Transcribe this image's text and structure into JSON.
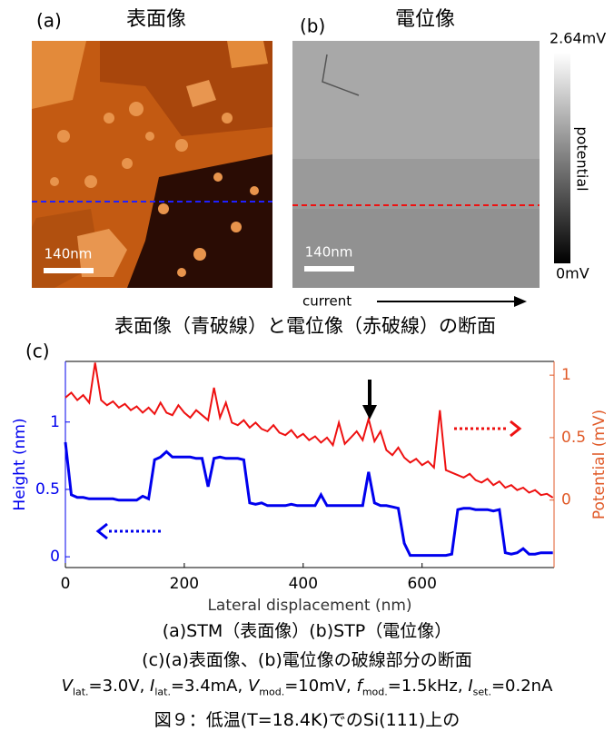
{
  "panel_a": {
    "label": "(a)",
    "title": "表面像",
    "scale_bar": "140nm"
  },
  "panel_b": {
    "label": "(b)",
    "title": "電位像",
    "scale_bar": "140nm",
    "colorbar_max": "2.64mV",
    "colorbar_min": "0mV",
    "colorbar_label": "potential",
    "current_label": "current"
  },
  "chart_data": {
    "type": "line",
    "title": "表面像（青破線）と電位像（赤破線）の断面",
    "panel_label": "(c)",
    "x_label": "Lateral displacement (nm)",
    "y_label": "Height (nm)",
    "y2_label": "Potential (mV)",
    "xlim": [
      0,
      822
    ],
    "xticks": [
      0,
      200,
      400,
      600
    ],
    "ylim": [
      -0.08,
      1.45
    ],
    "yticks": [
      0,
      0.5,
      1
    ],
    "y2lim": [
      -0.54,
      1.11
    ],
    "y2ticks": [
      0,
      0.5,
      1
    ],
    "x": [
      0,
      10,
      20,
      30,
      40,
      50,
      60,
      70,
      80,
      90,
      100,
      110,
      120,
      130,
      140,
      150,
      160,
      170,
      180,
      190,
      200,
      210,
      220,
      230,
      240,
      250,
      260,
      270,
      280,
      290,
      300,
      310,
      320,
      330,
      340,
      350,
      360,
      370,
      380,
      390,
      400,
      410,
      420,
      430,
      440,
      450,
      460,
      470,
      480,
      490,
      500,
      510,
      520,
      530,
      540,
      550,
      560,
      570,
      580,
      590,
      600,
      610,
      620,
      630,
      640,
      650,
      660,
      670,
      680,
      690,
      700,
      710,
      720,
      730,
      740,
      750,
      760,
      770,
      780,
      790,
      800,
      810,
      820
    ],
    "series": [
      {
        "color": "#0000ee",
        "values": [
          0.85,
          0.46,
          0.44,
          0.44,
          0.43,
          0.43,
          0.43,
          0.43,
          0.43,
          0.42,
          0.42,
          0.42,
          0.42,
          0.45,
          0.43,
          0.72,
          0.74,
          0.78,
          0.74,
          0.74,
          0.74,
          0.74,
          0.73,
          0.73,
          0.52,
          0.73,
          0.74,
          0.73,
          0.73,
          0.73,
          0.72,
          0.4,
          0.39,
          0.4,
          0.38,
          0.38,
          0.38,
          0.38,
          0.39,
          0.38,
          0.38,
          0.38,
          0.38,
          0.46,
          0.38,
          0.38,
          0.38,
          0.38,
          0.38,
          0.38,
          0.38,
          0.63,
          0.4,
          0.38,
          0.38,
          0.37,
          0.36,
          0.1,
          0.01,
          0.01,
          0.01,
          0.01,
          0.01,
          0.01,
          0.01,
          0.02,
          0.35,
          0.36,
          0.36,
          0.35,
          0.35,
          0.35,
          0.34,
          0.35,
          0.03,
          0.02,
          0.03,
          0.06,
          0.02,
          0.02,
          0.03,
          0.03,
          0.03
        ]
      },
      {
        "color": "#ee1111",
        "axis": "y2",
        "values": [
          0.82,
          0.86,
          0.8,
          0.84,
          0.78,
          1.1,
          0.8,
          0.76,
          0.79,
          0.74,
          0.77,
          0.72,
          0.75,
          0.7,
          0.74,
          0.69,
          0.78,
          0.7,
          0.68,
          0.76,
          0.7,
          0.66,
          0.72,
          0.68,
          0.64,
          0.9,
          0.66,
          0.78,
          0.62,
          0.6,
          0.64,
          0.58,
          0.62,
          0.57,
          0.55,
          0.6,
          0.54,
          0.52,
          0.56,
          0.5,
          0.53,
          0.48,
          0.51,
          0.46,
          0.5,
          0.44,
          0.62,
          0.45,
          0.5,
          0.55,
          0.48,
          0.65,
          0.47,
          0.55,
          0.4,
          0.36,
          0.42,
          0.34,
          0.3,
          0.33,
          0.28,
          0.31,
          0.26,
          0.72,
          0.24,
          0.22,
          0.2,
          0.18,
          0.21,
          0.16,
          0.14,
          0.17,
          0.12,
          0.15,
          0.1,
          0.12,
          0.08,
          0.1,
          0.06,
          0.08,
          0.04,
          0.05,
          0.02
        ]
      }
    ]
  },
  "caption": {
    "line1": "(a)STM（表面像）(b)STP（電位像）",
    "line2": "(c)(a)表面像、(b)電位像の破線部分の断面",
    "line3": [
      {
        "symbol": "V",
        "sub": "lat.",
        "rest": "=3.0V, "
      },
      {
        "symbol": "I",
        "sub": "lat.",
        "rest": "=3.4mA, "
      },
      {
        "symbol": "V",
        "sub": "mod.",
        "rest": "=10mV, "
      },
      {
        "symbol": "f",
        "sub": "mod.",
        "rest": "=1.5kHz, "
      },
      {
        "symbol": "I",
        "sub": "set.",
        "rest": "=0.2nA"
      }
    ],
    "line4": "図９：低温(T=18.4K)でのSi(111)上の"
  }
}
